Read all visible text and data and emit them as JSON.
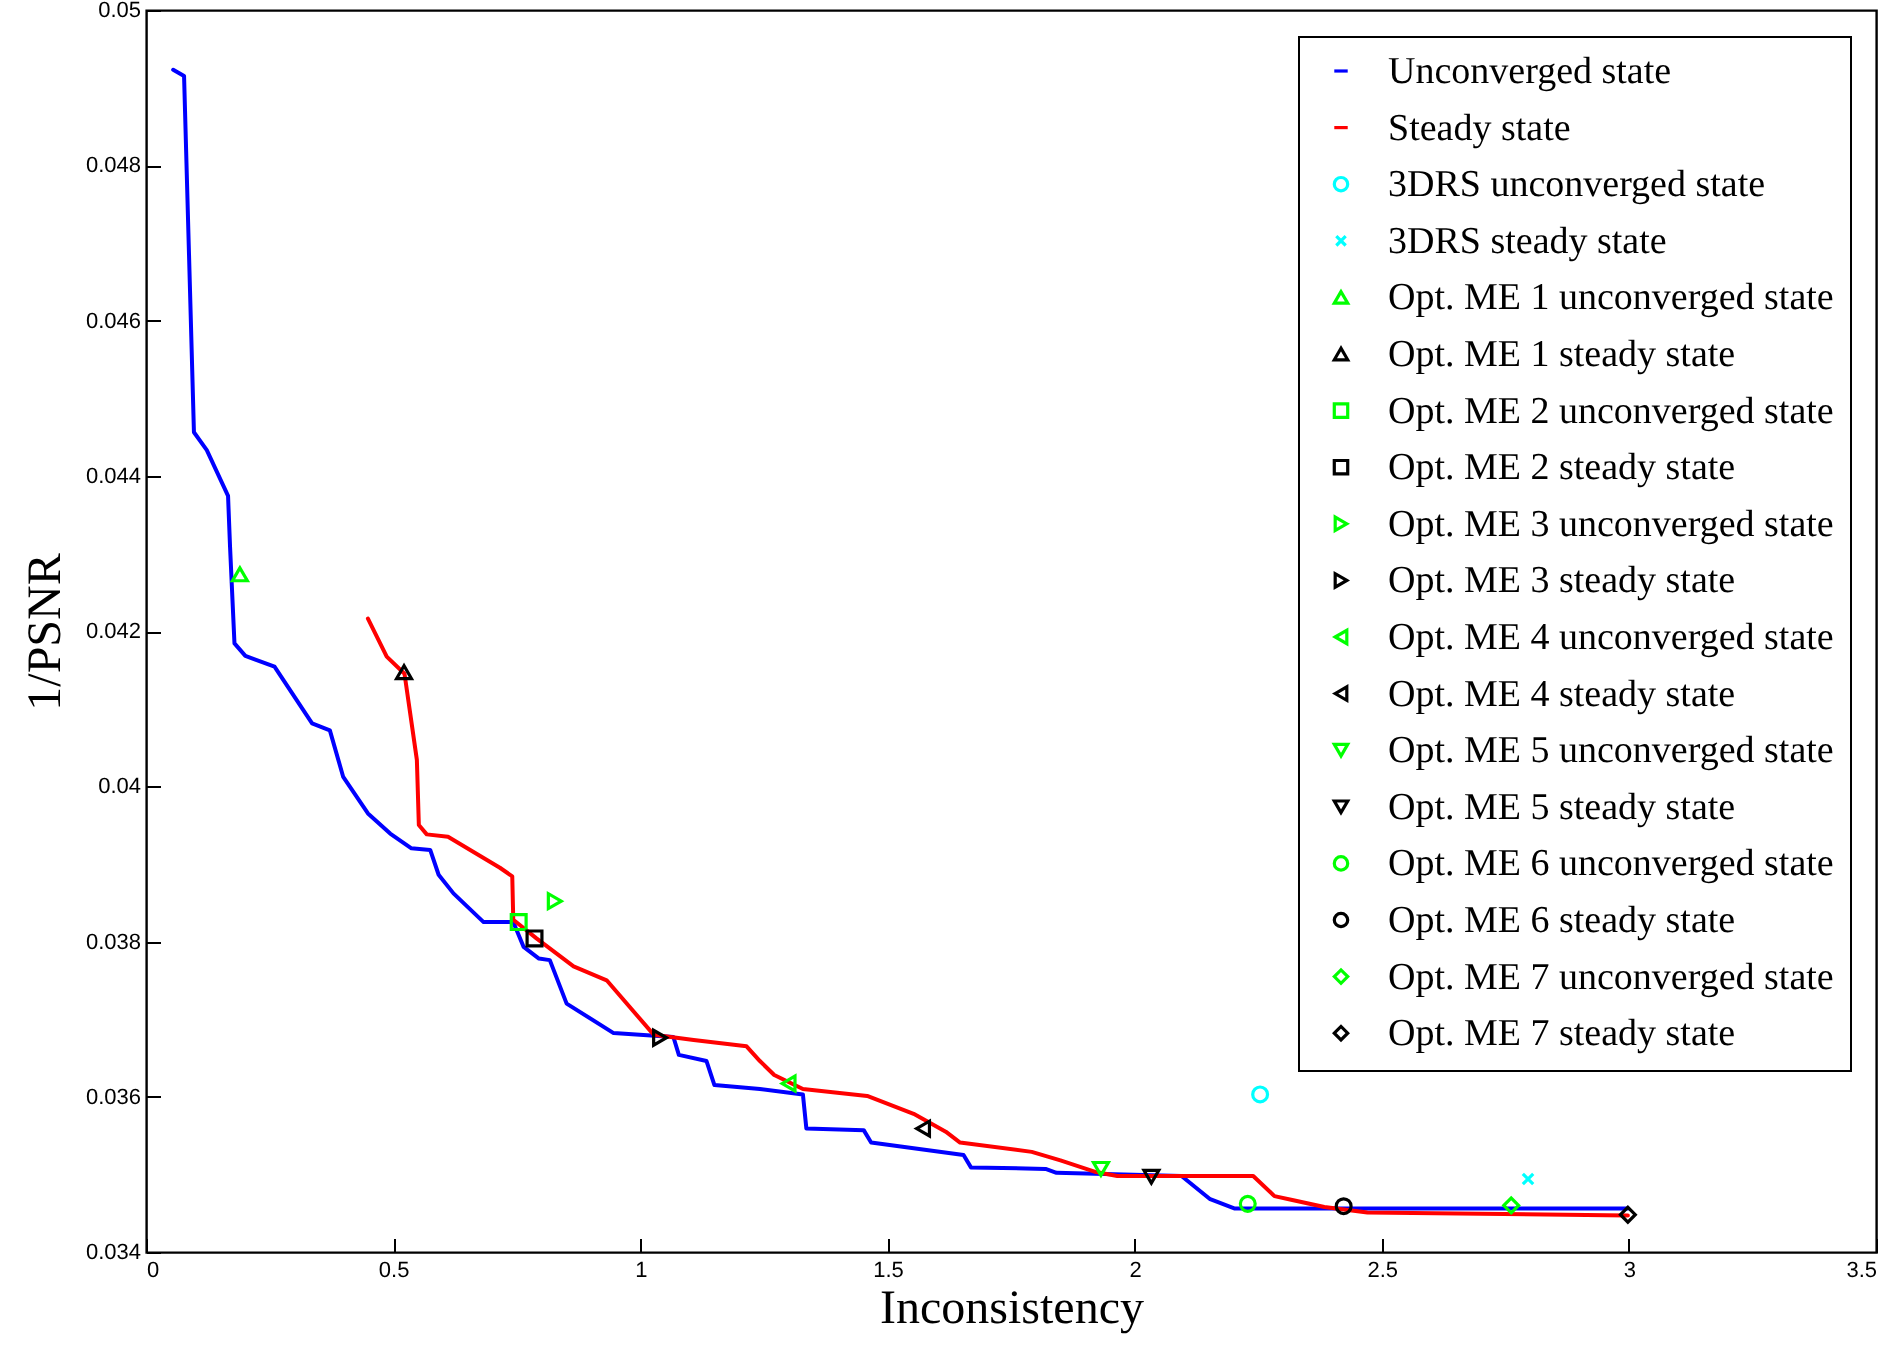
{
  "chart_data": {
    "type": "line",
    "xlabel": "Inconsistency",
    "ylabel": "1/PSNR",
    "xlim": [
      0,
      3.5
    ],
    "ylim": [
      0.034,
      0.05
    ],
    "xticks": [
      0,
      0.5,
      1,
      1.5,
      2,
      2.5,
      3,
      3.5
    ],
    "yticks": [
      0.034,
      0.036,
      0.038,
      0.04,
      0.042,
      0.044,
      0.046,
      0.048,
      0.05
    ],
    "legend": "top right",
    "line_style": "solid",
    "series": [
      {
        "name": "Unconverged state",
        "color": "#0000ff",
        "x": [
          0.055,
          0.077,
          0.097,
          0.123,
          0.166,
          0.17,
          0.179,
          0.201,
          0.26,
          0.336,
          0.372,
          0.399,
          0.449,
          0.494,
          0.537,
          0.575,
          0.592,
          0.622,
          0.683,
          0.743,
          0.764,
          0.795,
          0.817,
          0.851,
          0.946,
          1.067,
          1.078,
          1.134,
          1.15,
          1.242,
          1.329,
          1.336,
          1.452,
          1.467,
          1.654,
          1.669,
          1.82,
          1.842,
          2.095,
          2.153,
          2.203,
          2.998
        ],
        "values": [
          0.04923,
          0.04915,
          0.04456,
          0.04433,
          0.04374,
          0.04309,
          0.04184,
          0.04168,
          0.04154,
          0.04081,
          0.04072,
          0.04012,
          0.03965,
          0.03939,
          0.0392,
          0.03918,
          0.03886,
          0.03862,
          0.03825,
          0.03825,
          0.03793,
          0.03778,
          0.03776,
          0.0372,
          0.03682,
          0.03677,
          0.03654,
          0.03646,
          0.03615,
          0.0361,
          0.03603,
          0.03559,
          0.03557,
          0.03541,
          0.03525,
          0.03509,
          0.03507,
          0.03502,
          0.03498,
          0.03468,
          0.03456,
          0.03456
        ]
      },
      {
        "name": "Steady state",
        "color": "#ff0000",
        "x": [
          0.449,
          0.487,
          0.523,
          0.548,
          0.552,
          0.568,
          0.611,
          0.716,
          0.741,
          0.743,
          0.79,
          0.865,
          0.932,
          1.027,
          1.108,
          1.215,
          1.242,
          1.271,
          1.329,
          1.459,
          1.553,
          1.618,
          1.647,
          1.792,
          1.85,
          1.922,
          1.965,
          2.24,
          2.283,
          2.319,
          2.384,
          2.471,
          2.998
        ],
        "values": [
          0.04216,
          0.04167,
          0.04145,
          0.04034,
          0.0395,
          0.03938,
          0.03935,
          0.03895,
          0.03884,
          0.03828,
          0.03804,
          0.03768,
          0.0375,
          0.0368,
          0.03673,
          0.03665,
          0.03646,
          0.03628,
          0.0361,
          0.03601,
          0.03578,
          0.03555,
          0.03541,
          0.03529,
          0.03518,
          0.03503,
          0.03498,
          0.03498,
          0.03472,
          0.03467,
          0.03458,
          0.03451,
          0.03447
        ]
      },
      {
        "name": "3DRS unconverged state",
        "type": "scatter",
        "marker": "circle",
        "color": "#00ffff",
        "x": [
          2.254
        ],
        "values": [
          0.03603
        ]
      },
      {
        "name": "3DRS steady state",
        "type": "scatter",
        "marker": "cross",
        "color": "#00ffff",
        "x": [
          2.796
        ],
        "values": [
          0.03494
        ]
      },
      {
        "name": "Opt. ME 1 unconverged state",
        "type": "scatter",
        "marker": "triangle-up",
        "color": "#00ff00",
        "x": [
          0.19
        ],
        "values": [
          0.04273
        ]
      },
      {
        "name": "Opt. ME 1 steady state",
        "type": "scatter",
        "marker": "triangle-up",
        "color": "#000000",
        "x": [
          0.522
        ],
        "values": [
          0.04147
        ]
      },
      {
        "name": "Opt. ME 2 unconverged state",
        "type": "scatter",
        "marker": "square",
        "color": "#00ff00",
        "x": [
          0.754
        ],
        "values": [
          0.03825
        ]
      },
      {
        "name": "Opt. ME 2 steady state",
        "type": "scatter",
        "marker": "square",
        "color": "#000000",
        "x": [
          0.786
        ],
        "values": [
          0.03804
        ]
      },
      {
        "name": "Opt. ME 3 unconverged state",
        "type": "scatter",
        "marker": "triangle-right",
        "color": "#00ff00",
        "x": [
          0.827
        ],
        "values": [
          0.03852
        ]
      },
      {
        "name": "Opt. ME 3 steady state",
        "type": "scatter",
        "marker": "triangle-right",
        "color": "#000000",
        "x": [
          1.04
        ],
        "values": [
          0.03676
        ]
      },
      {
        "name": "Opt. ME 4 unconverged state",
        "type": "scatter",
        "marker": "triangle-left",
        "color": "#00ff00",
        "x": [
          1.3
        ],
        "values": [
          0.03617
        ]
      },
      {
        "name": "Opt. ME 4 steady state",
        "type": "scatter",
        "marker": "triangle-left",
        "color": "#000000",
        "x": [
          1.572
        ],
        "values": [
          0.03559
        ]
      },
      {
        "name": "Opt. ME 5 unconverged state",
        "type": "scatter",
        "marker": "triangle-down",
        "color": "#00ff00",
        "x": [
          1.932
        ],
        "values": [
          0.03507
        ]
      },
      {
        "name": "Opt. ME 5 steady state",
        "type": "scatter",
        "marker": "triangle-down",
        "color": "#000000",
        "x": [
          2.034
        ],
        "values": [
          0.03497
        ]
      },
      {
        "name": "Opt. ME 6 unconverged state",
        "type": "scatter",
        "marker": "circle",
        "color": "#00ff00",
        "x": [
          2.229
        ],
        "values": [
          0.03462
        ]
      },
      {
        "name": "Opt. ME 6 steady state",
        "type": "scatter",
        "marker": "circle",
        "color": "#000000",
        "x": [
          2.423
        ],
        "values": [
          0.03459
        ]
      },
      {
        "name": "Opt. ME 7 unconverged state",
        "type": "scatter",
        "marker": "diamond",
        "color": "#00ff00",
        "x": [
          2.762
        ],
        "values": [
          0.0346
        ]
      },
      {
        "name": "Opt. ME 7 steady state",
        "type": "scatter",
        "marker": "diamond",
        "color": "#000000",
        "x": [
          2.998
        ],
        "values": [
          0.03448
        ]
      }
    ]
  }
}
